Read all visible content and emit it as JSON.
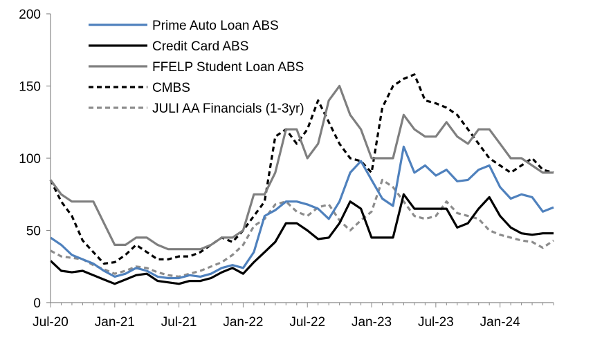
{
  "chart_data": {
    "type": "line",
    "title": "",
    "xlabel": "",
    "ylabel": "",
    "ylim": [
      0,
      200
    ],
    "yticks": [
      0,
      50,
      100,
      150,
      200
    ],
    "x_tick_labels": [
      "Jul-20",
      "Jan-21",
      "Jul-21",
      "Jan-22",
      "Jul-22",
      "Jan-23",
      "Jul-23",
      "Jan-24"
    ],
    "x_tick_index": [
      0,
      6,
      12,
      18,
      24,
      30,
      36,
      42
    ],
    "x_count": 48,
    "grid": false,
    "legend_position": "top-left",
    "series": [
      {
        "name": "Prime Auto Loan ABS",
        "color": "#4F81BD",
        "dash": "solid",
        "values": [
          45,
          40,
          33,
          30,
          27,
          22,
          18,
          20,
          24,
          22,
          18,
          17,
          17,
          19,
          18,
          20,
          24,
          26,
          24,
          35,
          60,
          64,
          70,
          70,
          68,
          65,
          58,
          70,
          90,
          98,
          85,
          72,
          67,
          108,
          90,
          95,
          88,
          92,
          84,
          85,
          92,
          95,
          80,
          72,
          75,
          73,
          63,
          66
        ]
      },
      {
        "name": "Credit Card ABS",
        "color": "#000000",
        "dash": "solid",
        "values": [
          29,
          22,
          21,
          22,
          19,
          16,
          13,
          16,
          19,
          20,
          15,
          14,
          13,
          15,
          15,
          17,
          21,
          24,
          20,
          28,
          35,
          42,
          55,
          55,
          50,
          44,
          45,
          55,
          70,
          65,
          45,
          45,
          45,
          75,
          65,
          65,
          65,
          65,
          52,
          55,
          65,
          73,
          60,
          52,
          48,
          47,
          48,
          48
        ]
      },
      {
        "name": "FFELP Student Loan ABS",
        "color": "#7F7F7F",
        "dash": "solid",
        "values": [
          85,
          75,
          70,
          70,
          70,
          55,
          40,
          40,
          45,
          45,
          40,
          37,
          37,
          37,
          37,
          40,
          45,
          45,
          50,
          75,
          75,
          90,
          120,
          120,
          100,
          110,
          140,
          150,
          130,
          120,
          100,
          100,
          100,
          130,
          120,
          115,
          115,
          125,
          115,
          110,
          120,
          120,
          110,
          100,
          100,
          95,
          90,
          90
        ]
      },
      {
        "name": "CMBS",
        "color": "#000000",
        "dash": "dashed",
        "values": [
          85,
          70,
          60,
          43,
          35,
          27,
          28,
          33,
          40,
          35,
          30,
          30,
          32,
          32,
          35,
          40,
          45,
          42,
          50,
          60,
          70,
          115,
          120,
          110,
          120,
          140,
          125,
          110,
          100,
          98,
          90,
          135,
          150,
          155,
          158,
          140,
          138,
          135,
          130,
          120,
          110,
          100,
          95,
          90,
          95,
          100,
          92,
          90
        ]
      },
      {
        "name": "JULI AA Financials (1-3yr)",
        "color": "#8C8C8C",
        "dash": "dashed",
        "values": [
          36,
          32,
          31,
          30,
          26,
          23,
          20,
          22,
          25,
          24,
          21,
          19,
          18,
          20,
          22,
          25,
          28,
          33,
          40,
          53,
          58,
          68,
          70,
          63,
          60,
          66,
          68,
          57,
          50,
          57,
          63,
          85,
          80,
          70,
          60,
          58,
          60,
          70,
          62,
          60,
          58,
          50,
          47,
          45,
          43,
          42,
          38,
          43
        ]
      }
    ]
  }
}
